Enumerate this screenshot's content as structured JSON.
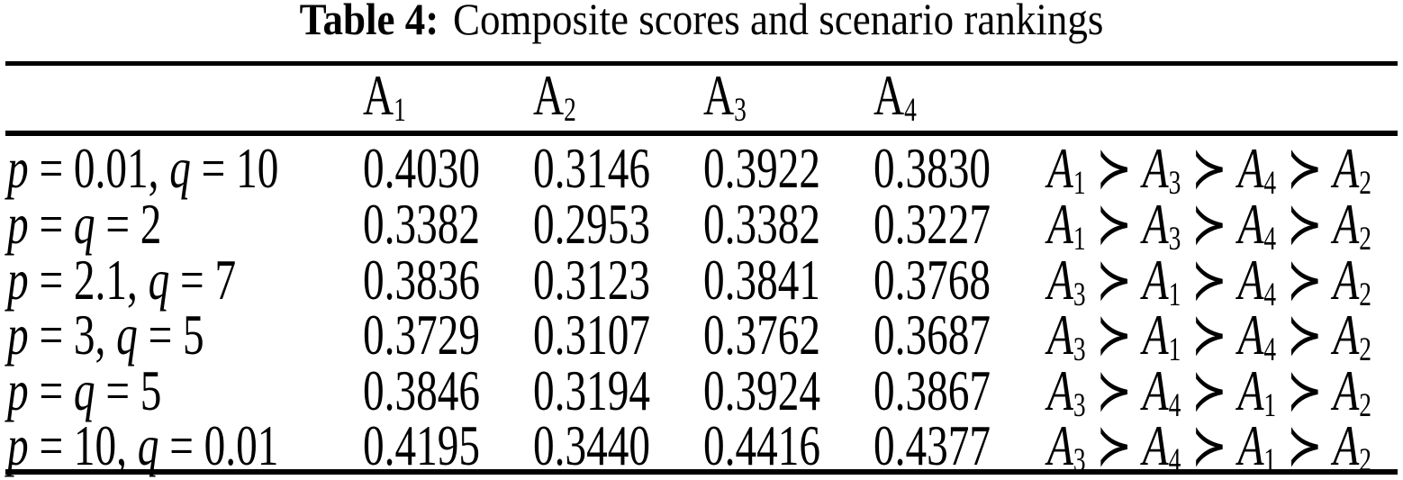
{
  "title": {
    "label": "Table 4:",
    "text": "Composite scores and scenario rankings"
  },
  "table": {
    "headers": [
      "A1",
      "A2",
      "A3",
      "A4"
    ],
    "rows": [
      {
        "scenario": "p = 0.01, q = 10",
        "values": [
          "0.4030",
          "0.3146",
          "0.3922",
          "0.3830"
        ],
        "ranking": "A1 ≻ A3 ≻ A4 ≻ A2"
      },
      {
        "scenario": "p = q = 2",
        "values": [
          "0.3382",
          "0.2953",
          "0.3382",
          "0.3227"
        ],
        "ranking": "A1 ≻ A3 ≻ A4 ≻ A2"
      },
      {
        "scenario": "p = 2.1, q = 7",
        "values": [
          "0.3836",
          "0.3123",
          "0.3841",
          "0.3768"
        ],
        "ranking": "A3 ≻ A1 ≻ A4 ≻ A2"
      },
      {
        "scenario": "p = 3, q = 5",
        "values": [
          "0.3729",
          "0.3107",
          "0.3762",
          "0.3687"
        ],
        "ranking": "A3 ≻ A1 ≻ A4 ≻ A2"
      },
      {
        "scenario": "p = q = 5",
        "values": [
          "0.3846",
          "0.3194",
          "0.3924",
          "0.3867"
        ],
        "ranking": "A3 ≻ A4 ≻ A1 ≻ A2"
      },
      {
        "scenario": "p = 10, q = 0.01",
        "values": [
          "0.4195",
          "0.3440",
          "0.4416",
          "0.4377"
        ],
        "ranking": "A3 ≻ A4 ≻ A1 ≻ A2"
      }
    ]
  }
}
